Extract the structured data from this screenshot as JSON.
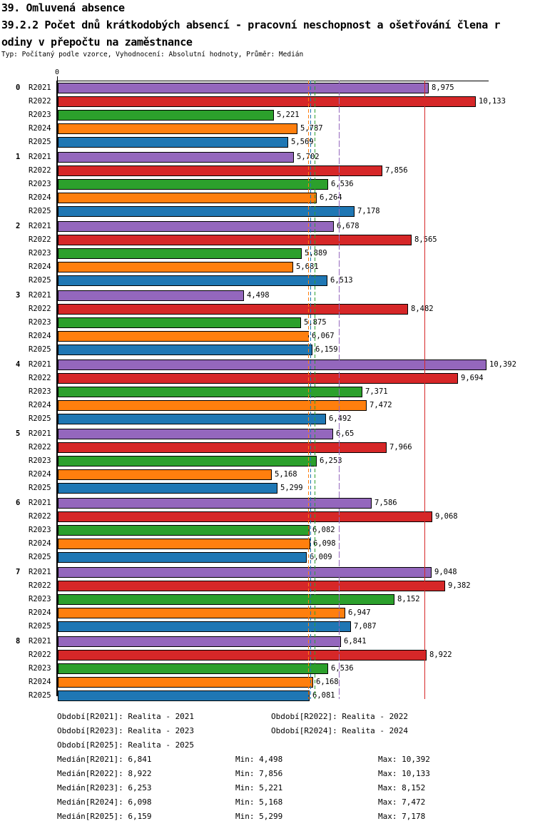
{
  "header": {
    "line1": "39. Omluvená absence",
    "line2": "39.2.2 Počet dnů krátkodobých absencí - pracovní neschopnost a ošetřování člena r",
    "line3": "odiny v přepočtu na zaměstnance",
    "meta": "Typ: Počítaný podle vzorce, Vyhodnocení: Absolutní hodnoty, Průměr: Medián"
  },
  "chart_data": {
    "type": "bar",
    "orientation": "horizontal",
    "title": "39.2.2 Počet dnů krátkodobých absencí - pracovní neschopnost a ošetřování člena rodiny v přepočtu na zaměstnance",
    "xlabel": "",
    "ylabel": "",
    "xlim": [
      0,
      10.49
    ],
    "grid": false,
    "origin_tick_label": "0",
    "categories": [
      "0",
      "1",
      "2",
      "3",
      "4",
      "5",
      "6",
      "7",
      "8"
    ],
    "series": [
      {
        "name": "R2021",
        "color": "#9467BD",
        "median": 6.841,
        "median_line_style": "longdash"
      },
      {
        "name": "R2022",
        "color": "#D62728",
        "median": 8.922,
        "median_line_style": "solid"
      },
      {
        "name": "R2023",
        "color": "#2CA02C",
        "median": 6.253,
        "median_line_style": "dashed"
      },
      {
        "name": "R2024",
        "color": "#FF7F0E",
        "median": 6.098,
        "median_line_style": "dashed"
      },
      {
        "name": "R2025",
        "color": "#1F77B4",
        "median": 6.159,
        "median_line_style": "dashed"
      }
    ],
    "values": [
      [
        8.975,
        10.133,
        5.221,
        5.787,
        5.569
      ],
      [
        5.702,
        7.856,
        6.536,
        6.264,
        7.178
      ],
      [
        6.678,
        8.565,
        5.889,
        5.681,
        6.513
      ],
      [
        4.498,
        8.482,
        5.875,
        6.067,
        6.159
      ],
      [
        10.392,
        9.694,
        7.371,
        7.472,
        6.492
      ],
      [
        6.65,
        7.966,
        6.253,
        5.168,
        5.299
      ],
      [
        7.586,
        9.068,
        6.082,
        6.098,
        6.009
      ],
      [
        9.048,
        9.382,
        8.152,
        6.947,
        7.087
      ],
      [
        6.841,
        8.922,
        6.536,
        6.168,
        6.081
      ]
    ],
    "value_labels": [
      [
        "8,975",
        "10,133",
        "5,221",
        "5,787",
        "5,569"
      ],
      [
        "5,702",
        "7,856",
        "6,536",
        "6,264",
        "7,178"
      ],
      [
        "6,678",
        "8,565",
        "5,889",
        "5,681",
        "6,513"
      ],
      [
        "4,498",
        "8,482",
        "5,875",
        "6,067",
        "6,159"
      ],
      [
        "10,392",
        "9,694",
        "7,371",
        "7,472",
        "6,492"
      ],
      [
        "6,65",
        "7,966",
        "6,253",
        "5,168",
        "5,299"
      ],
      [
        "7,586",
        "9,068",
        "6,082",
        "6,098",
        "6,009"
      ],
      [
        "9,048",
        "9,382",
        "8,152",
        "6,947",
        "7,087"
      ],
      [
        "6,841",
        "8,922",
        "6,536",
        "6,168",
        "6,081"
      ]
    ]
  },
  "legend": {
    "periods": [
      "Období[R2021]: Realita - 2021",
      "Období[R2022]: Realita - 2022",
      "Období[R2023]: Realita - 2023",
      "Období[R2024]: Realita - 2024",
      "Období[R2025]: Realita - 2025"
    ]
  },
  "stats": {
    "rows": [
      {
        "median": "Medián[R2021]: 6,841",
        "min": "Min: 4,498",
        "max": "Max: 10,392"
      },
      {
        "median": "Medián[R2022]: 8,922",
        "min": "Min: 7,856",
        "max": "Max: 10,133"
      },
      {
        "median": "Medián[R2023]: 6,253",
        "min": "Min: 5,221",
        "max": "Max: 8,152"
      },
      {
        "median": "Medián[R2024]: 6,098",
        "min": "Min: 5,168",
        "max": "Max: 7,472"
      },
      {
        "median": "Medián[R2025]: 6,159",
        "min": "Min: 5,299",
        "max": "Max: 7,178"
      }
    ]
  }
}
